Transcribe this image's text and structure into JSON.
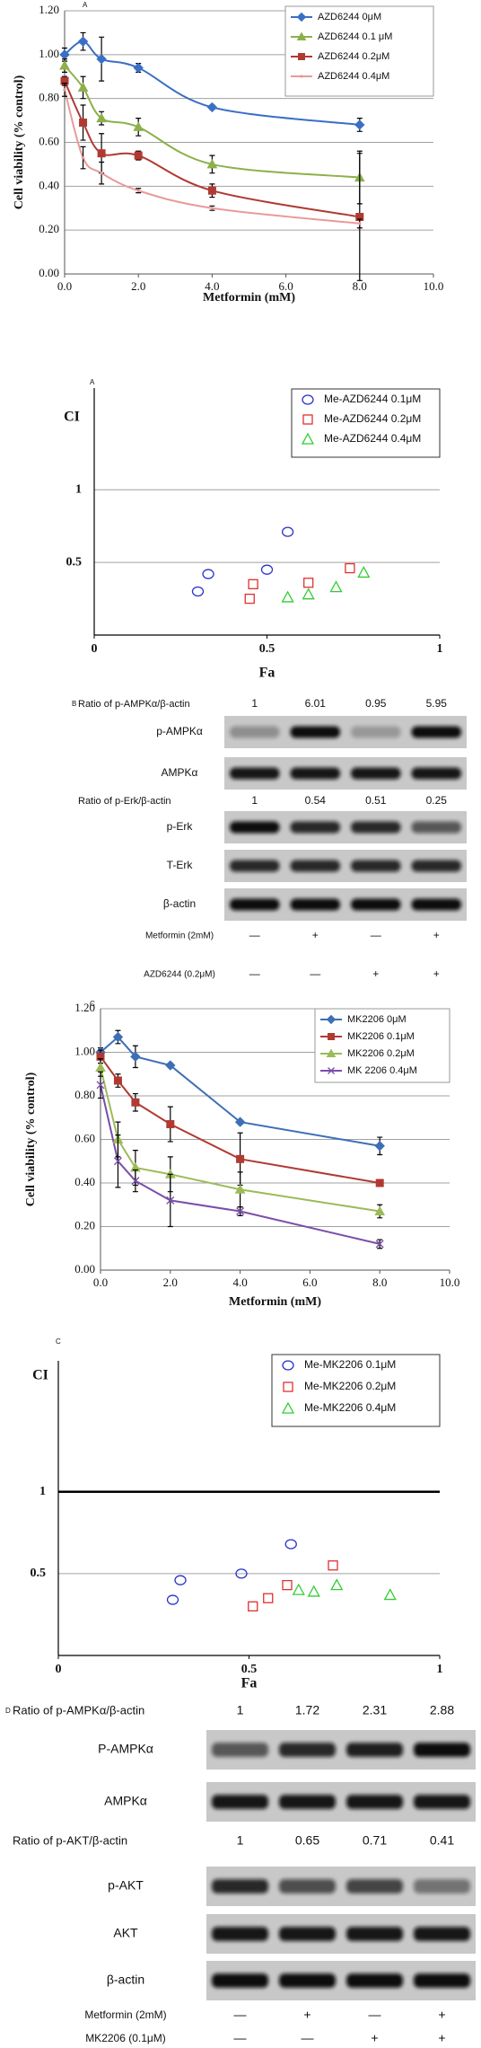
{
  "chart_data": [
    {
      "type": "line",
      "label": "A",
      "smooth": true,
      "grid": true,
      "legend": "upper right",
      "ylabel": "Cell viability (% control)",
      "xlabel": "Metformin  (mM)",
      "xlim": [
        0,
        10
      ],
      "ylim": [
        0,
        1.2
      ],
      "xticks": [
        {
          "value": 0,
          "label": "0.0"
        },
        {
          "value": 2,
          "label": "2.0"
        },
        {
          "value": 4,
          "label": "4.0"
        },
        {
          "value": 6,
          "label": "6.0"
        },
        {
          "value": 8,
          "label": "8.0"
        },
        {
          "value": 10,
          "label": "10.0"
        }
      ],
      "yticks": [
        {
          "value": 0,
          "label": "0.00"
        },
        {
          "value": 0.2,
          "label": "0.20"
        },
        {
          "value": 0.4,
          "label": "0.40"
        },
        {
          "value": 0.6,
          "label": "0.60"
        },
        {
          "value": 0.8,
          "label": "0.80"
        },
        {
          "value": 1,
          "label": "1.00"
        },
        {
          "value": 1.2,
          "label": "1.20"
        }
      ],
      "x": [
        0,
        0.5,
        1,
        2,
        4,
        8
      ],
      "series": [
        {
          "name": "AZD6244 0μM",
          "color": "#3a6fc4",
          "marker": "diamond",
          "values": [
            1.0,
            1.06,
            0.98,
            0.94,
            0.76,
            0.68
          ],
          "errors": [
            0.03,
            0.04,
            0.1,
            0.02,
            0.01,
            0.03
          ]
        },
        {
          "name": "AZD6244 0.1 μM",
          "color": "#8db04a",
          "marker": "triangle",
          "values": [
            0.95,
            0.85,
            0.71,
            0.67,
            0.5,
            0.44
          ],
          "errors": [
            0.03,
            0.05,
            0.03,
            0.04,
            0.04,
            0.12
          ]
        },
        {
          "name": "AZD6244 0.2μM",
          "color": "#b03a32",
          "marker": "square",
          "values": [
            0.88,
            0.69,
            0.55,
            0.54,
            0.38,
            0.26
          ],
          "errors": [
            0.02,
            0.08,
            0.09,
            0.02,
            0.03,
            0.29
          ]
        },
        {
          "name": "AZD6244 0.4μM",
          "color": "#e89a9a",
          "marker": "none",
          "values": [
            0.84,
            0.53,
            0.46,
            0.38,
            0.3,
            0.23
          ],
          "errors": [
            0.03,
            0.05,
            0.05,
            0.01,
            0.01,
            0.02
          ]
        }
      ]
    },
    {
      "type": "scatter",
      "label": "A",
      "grid": true,
      "legend": "upper right",
      "ylabel": "CI",
      "xlabel": "Fa",
      "xlim": [
        0,
        1
      ],
      "ylim": [
        0,
        1.7
      ],
      "xticks": [
        0,
        0.5,
        1
      ],
      "yticks": [
        0.5,
        1
      ],
      "series": [
        {
          "name": "Me-AZD6244 0.1μM",
          "color": "#2a35c9",
          "marker": "circle",
          "x": [
            0.3,
            0.33,
            0.5,
            0.56
          ],
          "values": [
            0.3,
            0.42,
            0.45,
            0.71
          ]
        },
        {
          "name": "Me-AZD6244 0.2μM",
          "color": "#e03030",
          "marker": "square",
          "x": [
            0.45,
            0.46,
            0.62,
            0.74
          ],
          "values": [
            0.25,
            0.35,
            0.36,
            0.46
          ]
        },
        {
          "name": "Me-AZD6244 0.4μM",
          "color": "#33cc33",
          "marker": "triangle",
          "x": [
            0.56,
            0.62,
            0.7,
            0.78
          ],
          "values": [
            0.26,
            0.28,
            0.33,
            0.43
          ]
        }
      ]
    },
    {
      "type": "line",
      "label": "C",
      "smooth": false,
      "grid": true,
      "legend": "upper right",
      "ylabel": "Cell viability (% control)",
      "xlabel": "Metformin   (mM)",
      "xlim": [
        0,
        10
      ],
      "ylim": [
        0,
        1.2
      ],
      "xticks": [
        {
          "value": 0,
          "label": "0.0"
        },
        {
          "value": 2,
          "label": "2.0"
        },
        {
          "value": 4,
          "label": "4.0"
        },
        {
          "value": 6,
          "label": "6.0"
        },
        {
          "value": 8,
          "label": "8.0"
        },
        {
          "value": 10,
          "label": "10.0"
        }
      ],
      "yticks": [
        {
          "value": 0,
          "label": "0.00"
        },
        {
          "value": 0.2,
          "label": "0.20"
        },
        {
          "value": 0.4,
          "label": "0.40"
        },
        {
          "value": 0.6,
          "label": "0.60"
        },
        {
          "value": 0.8,
          "label": "0.80"
        },
        {
          "value": 1,
          "label": "1.00"
        },
        {
          "value": 1.2,
          "label": "1.20"
        }
      ],
      "x": [
        0,
        0.5,
        1,
        2,
        4,
        8
      ],
      "series": [
        {
          "name": "MK2206 0μM",
          "color": "#3d6fb6",
          "marker": "diamond",
          "values": [
            1.0,
            1.07,
            0.98,
            0.94,
            0.68,
            0.57
          ],
          "errors": [
            0.02,
            0.03,
            0.05,
            0.01,
            0.01,
            0.04
          ]
        },
        {
          "name": "MK2206 0.1μM",
          "color": "#b03a32",
          "marker": "square",
          "values": [
            0.98,
            0.87,
            0.77,
            0.67,
            0.51,
            0.4
          ],
          "errors": [
            0.03,
            0.03,
            0.04,
            0.08,
            0.12,
            0.01
          ]
        },
        {
          "name": "MK2206 0.2μM",
          "color": "#9bbb59",
          "marker": "triangle",
          "values": [
            0.93,
            0.6,
            0.47,
            0.44,
            0.37,
            0.27
          ],
          "errors": [
            0.04,
            0.08,
            0.08,
            0.08,
            0.08,
            0.03
          ]
        },
        {
          "name": "MK 2206 0.4μM",
          "color": "#7a4ea8",
          "marker": "x",
          "values": [
            0.85,
            0.5,
            0.41,
            0.32,
            0.27,
            0.12
          ],
          "errors": [
            0.06,
            0.12,
            0.05,
            0.12,
            0.02,
            0.02
          ]
        }
      ]
    },
    {
      "type": "scatter",
      "label": "C",
      "grid": true,
      "legend": "upper right",
      "ylabel": "CI",
      "xlabel": "Fa",
      "xlim": [
        0,
        1
      ],
      "ylim": [
        0,
        1.8
      ],
      "xticks": [
        0,
        0.5,
        1
      ],
      "yticks": [
        0.5,
        1
      ],
      "series": [
        {
          "name": "Me-MK2206 0.1μM",
          "color": "#2a35c9",
          "marker": "circle",
          "x": [
            0.3,
            0.32,
            0.48,
            0.61
          ],
          "values": [
            0.34,
            0.46,
            0.5,
            0.68
          ]
        },
        {
          "name": "Me-MK2206 0.2μM",
          "color": "#e03030",
          "marker": "square",
          "x": [
            0.51,
            0.55,
            0.6,
            0.72
          ],
          "values": [
            0.3,
            0.35,
            0.43,
            0.55
          ]
        },
        {
          "name": "Me-MK2206 0.4μM",
          "color": "#33cc33",
          "marker": "triangle",
          "x": [
            0.63,
            0.67,
            0.73,
            0.87
          ],
          "values": [
            0.4,
            0.39,
            0.43,
            0.37
          ]
        }
      ]
    }
  ],
  "blots": [
    {
      "label": "B",
      "rows": [
        {
          "label": "Ratio of p-AMPKα/β-actin",
          "values": [
            1,
            6.01,
            0.95,
            5.95
          ]
        },
        {
          "label": "p-AMPKα"
        },
        {
          "label": "AMPKα"
        },
        {
          "label": "Ratio of p-Erk/β-actin",
          "values": [
            1,
            0.54,
            0.51,
            0.25
          ]
        },
        {
          "label": "p-Erk"
        },
        {
          "label": "T-Erk"
        },
        {
          "label": "β-actin"
        },
        {
          "label": "Metformin (2mM)",
          "values": [
            "—",
            "+",
            "—",
            "+"
          ]
        },
        {
          "label": "AZD6244 (0.2μM)",
          "values": [
            "—",
            "—",
            "+",
            "+"
          ]
        }
      ]
    },
    {
      "label": "D",
      "rows": [
        {
          "label": "Ratio of p-AMPKα/β-actin",
          "values": [
            1,
            1.72,
            2.31,
            2.88
          ]
        },
        {
          "label": "P-AMPKα"
        },
        {
          "label": "AMPKα"
        },
        {
          "label": "Ratio of p-AKT/β-actin",
          "values": [
            1,
            0.65,
            0.71,
            0.41
          ]
        },
        {
          "label": "p-AKT"
        },
        {
          "label": "AKT"
        },
        {
          "label": "β-actin"
        },
        {
          "label": "Metformin (2mM)",
          "values": [
            "—",
            "+",
            "—",
            "+"
          ]
        },
        {
          "label": "MK2206 (0.1μM)",
          "values": [
            "—",
            "—",
            "+",
            "+"
          ]
        }
      ]
    }
  ]
}
